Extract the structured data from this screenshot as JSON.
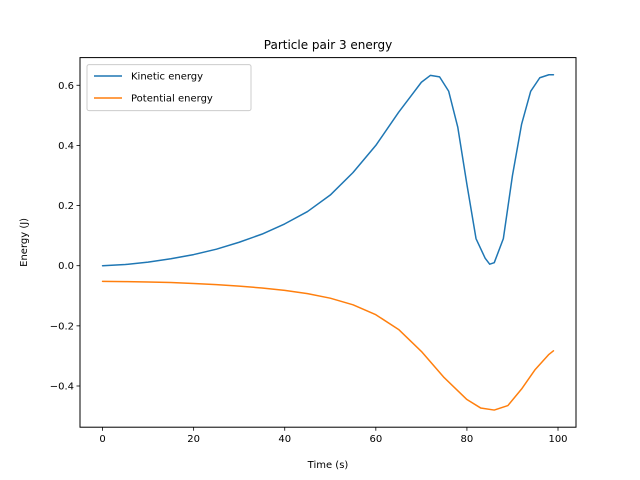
{
  "chart_data": {
    "type": "line",
    "title": "Particle pair 3 energy",
    "xlabel": "Time (s)",
    "ylabel": "Energy (J)",
    "xlim": [
      -4.95,
      103.95
    ],
    "ylim": [
      -0.537,
      0.692
    ],
    "xticks": [
      0,
      20,
      40,
      60,
      80,
      100
    ],
    "yticks": [
      -0.4,
      -0.2,
      0.0,
      0.2,
      0.4,
      0.6
    ],
    "xtick_labels": [
      "0",
      "20",
      "40",
      "60",
      "80",
      "100"
    ],
    "ytick_labels": [
      "−0.4",
      "−0.2",
      "0.0",
      "0.2",
      "0.4",
      "0.6"
    ],
    "legend": {
      "position": "upper-left",
      "entries": [
        "Kinetic energy",
        "Potential energy"
      ]
    },
    "grid": false,
    "series": [
      {
        "name": "Kinetic energy",
        "color": "#1f77b4",
        "x": [
          0,
          5,
          10,
          15,
          20,
          25,
          30,
          35,
          40,
          45,
          50,
          55,
          60,
          65,
          68,
          70,
          72,
          74,
          76,
          78,
          80,
          82,
          84,
          85,
          86,
          88,
          90,
          92,
          94,
          96,
          98,
          99
        ],
        "y": [
          0.0,
          0.004,
          0.012,
          0.023,
          0.037,
          0.055,
          0.078,
          0.105,
          0.139,
          0.18,
          0.235,
          0.31,
          0.4,
          0.51,
          0.57,
          0.61,
          0.633,
          0.628,
          0.58,
          0.46,
          0.27,
          0.09,
          0.025,
          0.005,
          0.01,
          0.09,
          0.3,
          0.47,
          0.58,
          0.625,
          0.635,
          0.635
        ]
      },
      {
        "name": "Potential energy",
        "color": "#ff7f0e",
        "x": [
          0,
          5,
          10,
          15,
          20,
          25,
          30,
          35,
          40,
          45,
          50,
          55,
          60,
          65,
          70,
          75,
          80,
          83,
          86,
          89,
          92,
          95,
          98,
          99
        ],
        "y": [
          -0.052,
          -0.053,
          -0.054,
          -0.056,
          -0.059,
          -0.063,
          -0.068,
          -0.074,
          -0.082,
          -0.093,
          -0.108,
          -0.13,
          -0.163,
          -0.212,
          -0.285,
          -0.372,
          -0.445,
          -0.473,
          -0.48,
          -0.465,
          -0.41,
          -0.345,
          -0.295,
          -0.283
        ]
      }
    ]
  }
}
